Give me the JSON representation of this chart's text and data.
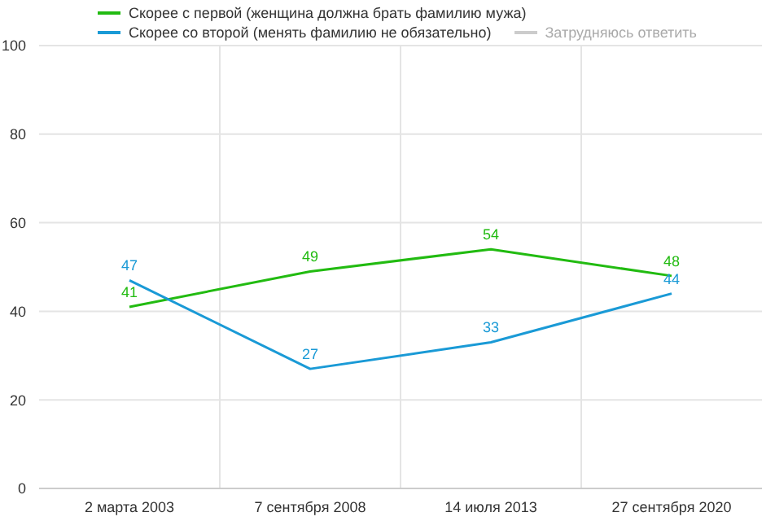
{
  "chart_data": {
    "type": "line",
    "categories": [
      "2 марта 2003",
      "7 сентября 2008",
      "14 июля 2013",
      "27 сентября 2020"
    ],
    "series": [
      {
        "name": "Скорее с первой (женщина должна брать фамилию мужа)",
        "color": "#22bb11",
        "values": [
          41,
          49,
          54,
          48
        ]
      },
      {
        "name": "Скорее со второй (менять фамилию не обязательно)",
        "color": "#1a9ad6",
        "values": [
          47,
          27,
          33,
          44
        ]
      },
      {
        "name": "Затрудняюсь ответить",
        "color": "#cccccc",
        "values": [
          null,
          null,
          null,
          null
        ]
      }
    ],
    "ylim": [
      0,
      100
    ],
    "yticks": [
      0,
      20,
      40,
      60,
      80,
      100
    ],
    "grid": true,
    "legend": "top",
    "data_labels": true,
    "marker": "none"
  }
}
